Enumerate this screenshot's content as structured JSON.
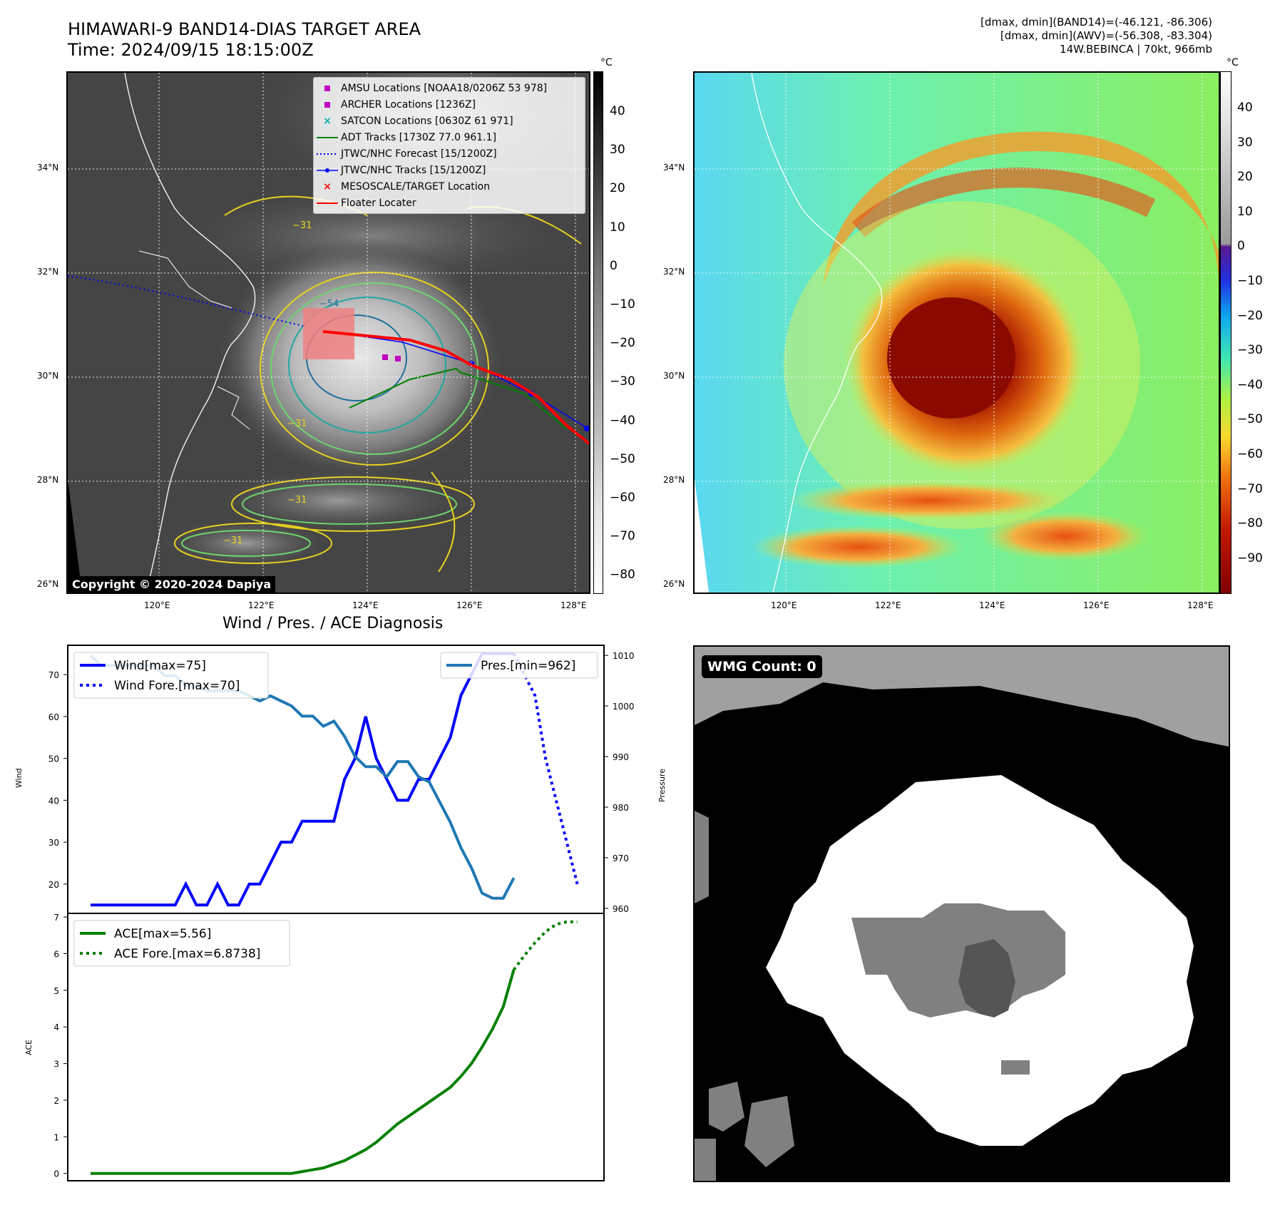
{
  "header": {
    "title_line1": "HIMAWARI-9 BAND14-DIAS TARGET AREA",
    "title_line2": "Time: 2024/09/15 18:15:00Z",
    "stats_line1": "[dmax, dmin](BAND14)=(-46.121, -86.306)",
    "stats_line2": "[dmax, dmin](AWV)=(-56.308, -83.304)",
    "stats_line3": "14W.BEBINCA | 70kt, 966mb"
  },
  "ir_map": {
    "lat_labels": [
      "34°N",
      "32°N",
      "30°N",
      "28°N",
      "26°N"
    ],
    "lon_labels": [
      "120°E",
      "122°E",
      "124°E",
      "126°E",
      "128°E"
    ],
    "colorbar_unit": "°C",
    "colorbar_ticks": [
      "40",
      "30",
      "20",
      "10",
      "0",
      "−10",
      "−20",
      "−30",
      "−40",
      "−50",
      "−60",
      "−70",
      "−80"
    ],
    "contour_labels": [
      "−31",
      "−54",
      "−31",
      "−31",
      "−31"
    ],
    "copyright": "Copyright © 2020-2024 Dapiya",
    "legend": [
      {
        "label": "AMSU Locations [NOAA18/0206Z 53 978]",
        "symbol": "square",
        "color": "#c000c0"
      },
      {
        "label": "ARCHER Locations [1236Z]",
        "symbol": "square",
        "color": "#c000c0"
      },
      {
        "label": "SATCON Locations [0630Z 61 971]",
        "symbol": "x",
        "color": "#00b0b0"
      },
      {
        "label": "ADT Tracks [1730Z 77.0 961.1]",
        "symbol": "line",
        "color": "#008000"
      },
      {
        "label": "JTWC/NHC Forecast [15/1200Z]",
        "symbol": "dotted",
        "color": "#0000ff"
      },
      {
        "label": "JTWC/NHC Tracks [15/1200Z]",
        "symbol": "line-dot",
        "color": "#0000ff"
      },
      {
        "label": "MESOSCALE/TARGET Location",
        "symbol": "x",
        "color": "#ff0000"
      },
      {
        "label": "Floater Locater",
        "symbol": "line",
        "color": "#ff0000"
      }
    ]
  },
  "color_map": {
    "lat_labels": [
      "34°N",
      "32°N",
      "30°N",
      "28°N",
      "26°N"
    ],
    "lon_labels": [
      "120°E",
      "122°E",
      "124°E",
      "126°E",
      "128°E"
    ],
    "colorbar_unit": "°C",
    "colorbar_ticks": [
      "40",
      "30",
      "20",
      "10",
      "0",
      "−10",
      "−20",
      "−30",
      "−40",
      "−50",
      "−60",
      "−70",
      "−80",
      "−90"
    ]
  },
  "wmg": {
    "label": "WMG Count: 0"
  },
  "chart_data": [
    {
      "type": "line",
      "title": "Wind / Pres. / ACE Diagnosis",
      "ylabel": "Wind",
      "y2label": "Pressure",
      "ylim": [
        13,
        77
      ],
      "y2lim": [
        959,
        1012
      ],
      "yticks": [
        20,
        30,
        40,
        50,
        60,
        70
      ],
      "y2ticks": [
        960,
        970,
        980,
        990,
        1000,
        1010
      ],
      "series": [
        {
          "name": "Wind[max=75]",
          "color": "#0000ff",
          "style": "solid",
          "x": [
            0,
            1,
            2,
            3,
            4,
            5,
            6,
            7,
            8,
            9,
            10,
            11,
            12,
            13,
            14,
            15,
            16,
            17,
            18,
            19,
            20,
            21,
            22,
            23,
            24,
            25,
            26,
            27,
            28,
            29,
            30,
            31,
            32,
            33,
            34,
            35,
            36,
            37,
            38,
            39,
            40
          ],
          "values": [
            15,
            15,
            15,
            15,
            15,
            15,
            15,
            15,
            15,
            20,
            15,
            15,
            20,
            15,
            15,
            20,
            20,
            25,
            30,
            30,
            35,
            35,
            35,
            35,
            45,
            50,
            60,
            50,
            45,
            40,
            40,
            45,
            45,
            50,
            55,
            65,
            70,
            75,
            75,
            75,
            75
          ]
        },
        {
          "name": "Wind Fore.[max=70]",
          "color": "#0000ff",
          "style": "dotted",
          "x": [
            40,
            41,
            42,
            43,
            44,
            45,
            46
          ],
          "values": [
            75,
            70,
            65,
            50,
            40,
            30,
            20
          ]
        },
        {
          "name": "Pres.[min=962]",
          "color": "#1f77b4",
          "style": "solid",
          "axis": "right",
          "x": [
            0,
            1,
            2,
            3,
            4,
            5,
            6,
            7,
            8,
            9,
            10,
            11,
            12,
            13,
            14,
            15,
            16,
            17,
            18,
            19,
            20,
            21,
            22,
            23,
            24,
            25,
            26,
            27,
            28,
            29,
            30,
            31,
            32,
            33,
            34,
            35,
            36,
            37,
            38,
            39,
            40
          ],
          "values": [
            1010,
            1008,
            1008,
            1008,
            1008,
            1008,
            1008,
            1006,
            1006,
            1004,
            1004,
            1003,
            1003,
            1003,
            1003,
            1002,
            1001,
            1002,
            1001,
            1000,
            998,
            998,
            996,
            997,
            994,
            990,
            988,
            988,
            986,
            989,
            989,
            986,
            985,
            981,
            977,
            972,
            968,
            963,
            962,
            962,
            966
          ]
        }
      ],
      "legend_left": [
        "Wind[max=75]",
        "Wind Fore.[max=70]"
      ],
      "legend_right": [
        "Pres.[min=962]"
      ]
    },
    {
      "type": "line",
      "ylabel": "ACE",
      "ylim": [
        -0.2,
        7.1
      ],
      "yticks": [
        0,
        1,
        2,
        3,
        4,
        5,
        6,
        7
      ],
      "series": [
        {
          "name": "ACE[max=5.56]",
          "color": "#008000",
          "style": "solid",
          "x": [
            0,
            1,
            2,
            3,
            4,
            5,
            6,
            7,
            8,
            9,
            10,
            11,
            12,
            13,
            14,
            15,
            16,
            17,
            18,
            19,
            20,
            21,
            22,
            23,
            24,
            25,
            26,
            27,
            28,
            29,
            30,
            31,
            32,
            33,
            34,
            35,
            36,
            37,
            38,
            39,
            40
          ],
          "values": [
            0,
            0,
            0,
            0,
            0,
            0,
            0,
            0,
            0,
            0,
            0,
            0,
            0,
            0,
            0,
            0,
            0,
            0,
            0,
            0,
            0.05,
            0.1,
            0.15,
            0.25,
            0.35,
            0.5,
            0.65,
            0.85,
            1.1,
            1.35,
            1.55,
            1.75,
            1.95,
            2.15,
            2.35,
            2.65,
            3.0,
            3.45,
            3.95,
            4.55,
            5.56
          ]
        },
        {
          "name": "ACE Fore.[max=6.8738]",
          "color": "#008000",
          "style": "dotted",
          "x": [
            40,
            41,
            42,
            43,
            44,
            45,
            46
          ],
          "values": [
            5.56,
            5.95,
            6.3,
            6.6,
            6.8,
            6.87,
            6.87
          ]
        }
      ]
    }
  ]
}
